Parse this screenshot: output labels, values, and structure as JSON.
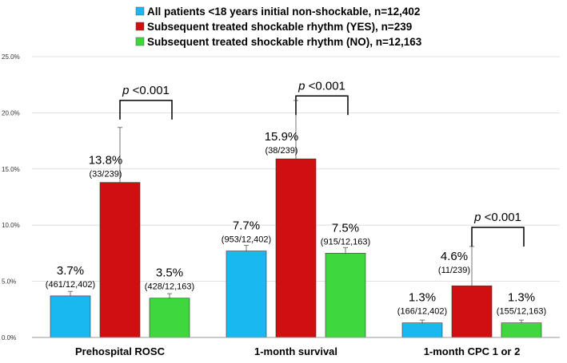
{
  "chart_data": {
    "type": "bar",
    "categories": [
      "Prehospital ROSC",
      "1-month survival",
      "1-month CPC 1 or 2"
    ],
    "series": [
      {
        "name": "All patients <18 years initial non-shockable, n=12,402",
        "color": "#1ab8f0",
        "values": [
          3.7,
          7.7,
          1.3
        ],
        "errors": [
          0.4,
          0.5,
          0.25
        ],
        "value_labels": [
          "3.7%",
          "7.7%",
          "1.3%"
        ],
        "fraction_labels": [
          "(461/12,402)",
          "(953/12,402)",
          "(166/12,402)"
        ]
      },
      {
        "name": "Subsequent treated shockable rhythm (YES), n=239",
        "color": "#d01010",
        "values": [
          13.8,
          15.9,
          4.6
        ],
        "errors": [
          4.9,
          5.2,
          3.5
        ],
        "value_labels": [
          "13.8%",
          "15.9%",
          "4.6%"
        ],
        "fraction_labels": [
          "(33/239)",
          "(38/239)",
          "(11/239)"
        ]
      },
      {
        "name": "Subsequent treated shockable rhythm (NO), n=12,163",
        "color": "#3ed83e",
        "values": [
          3.5,
          7.5,
          1.3
        ],
        "errors": [
          0.4,
          0.5,
          0.25
        ],
        "value_labels": [
          "3.5%",
          "7.5%",
          "1.3%"
        ],
        "fraction_labels": [
          "(428/12,163)",
          "(915/12,163)",
          "(155/12,163)"
        ]
      }
    ],
    "ylim": [
      0,
      25
    ],
    "yticks": [
      0,
      5,
      10,
      15,
      20,
      25
    ],
    "ytick_labels": [
      "0.0%",
      "5.0%",
      "10.0%",
      "15.0%",
      "20.0%",
      "25.0%"
    ],
    "significance": [
      {
        "category": 0,
        "label": "p <0.001",
        "bracket_level": 21.1
      },
      {
        "category": 1,
        "label": "p <0.001",
        "bracket_level": 21.5
      },
      {
        "category": 2,
        "label": "p <0.001",
        "bracket_level": 9.8
      }
    ],
    "legend_position": "top"
  }
}
